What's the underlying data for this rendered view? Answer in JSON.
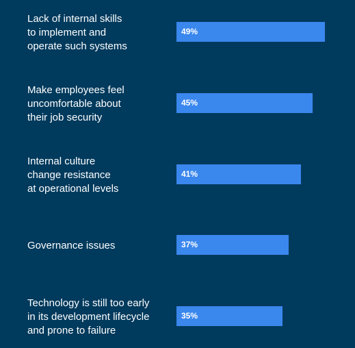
{
  "chart_data": {
    "type": "bar",
    "orientation": "horizontal",
    "categories": [
      "Lack of internal skills\nto implement and\noperate such systems",
      "Make employees feel\nuncomfortable about\ntheir job security",
      "Internal culture\nchange resistance\nat operational levels",
      "Governance issues",
      "Technology is still too early\nin its development lifecycle\nand prone to failure"
    ],
    "values": [
      49,
      45,
      41,
      37,
      35
    ],
    "value_labels": [
      "49%",
      "45%",
      "41%",
      "37%",
      "35%"
    ],
    "unit": "%",
    "xlim": [
      0,
      49
    ],
    "grid": false,
    "legend": "none"
  },
  "colors": {
    "background": "#003a5d",
    "bar": "#3a87ee",
    "text": "#ffffff"
  }
}
